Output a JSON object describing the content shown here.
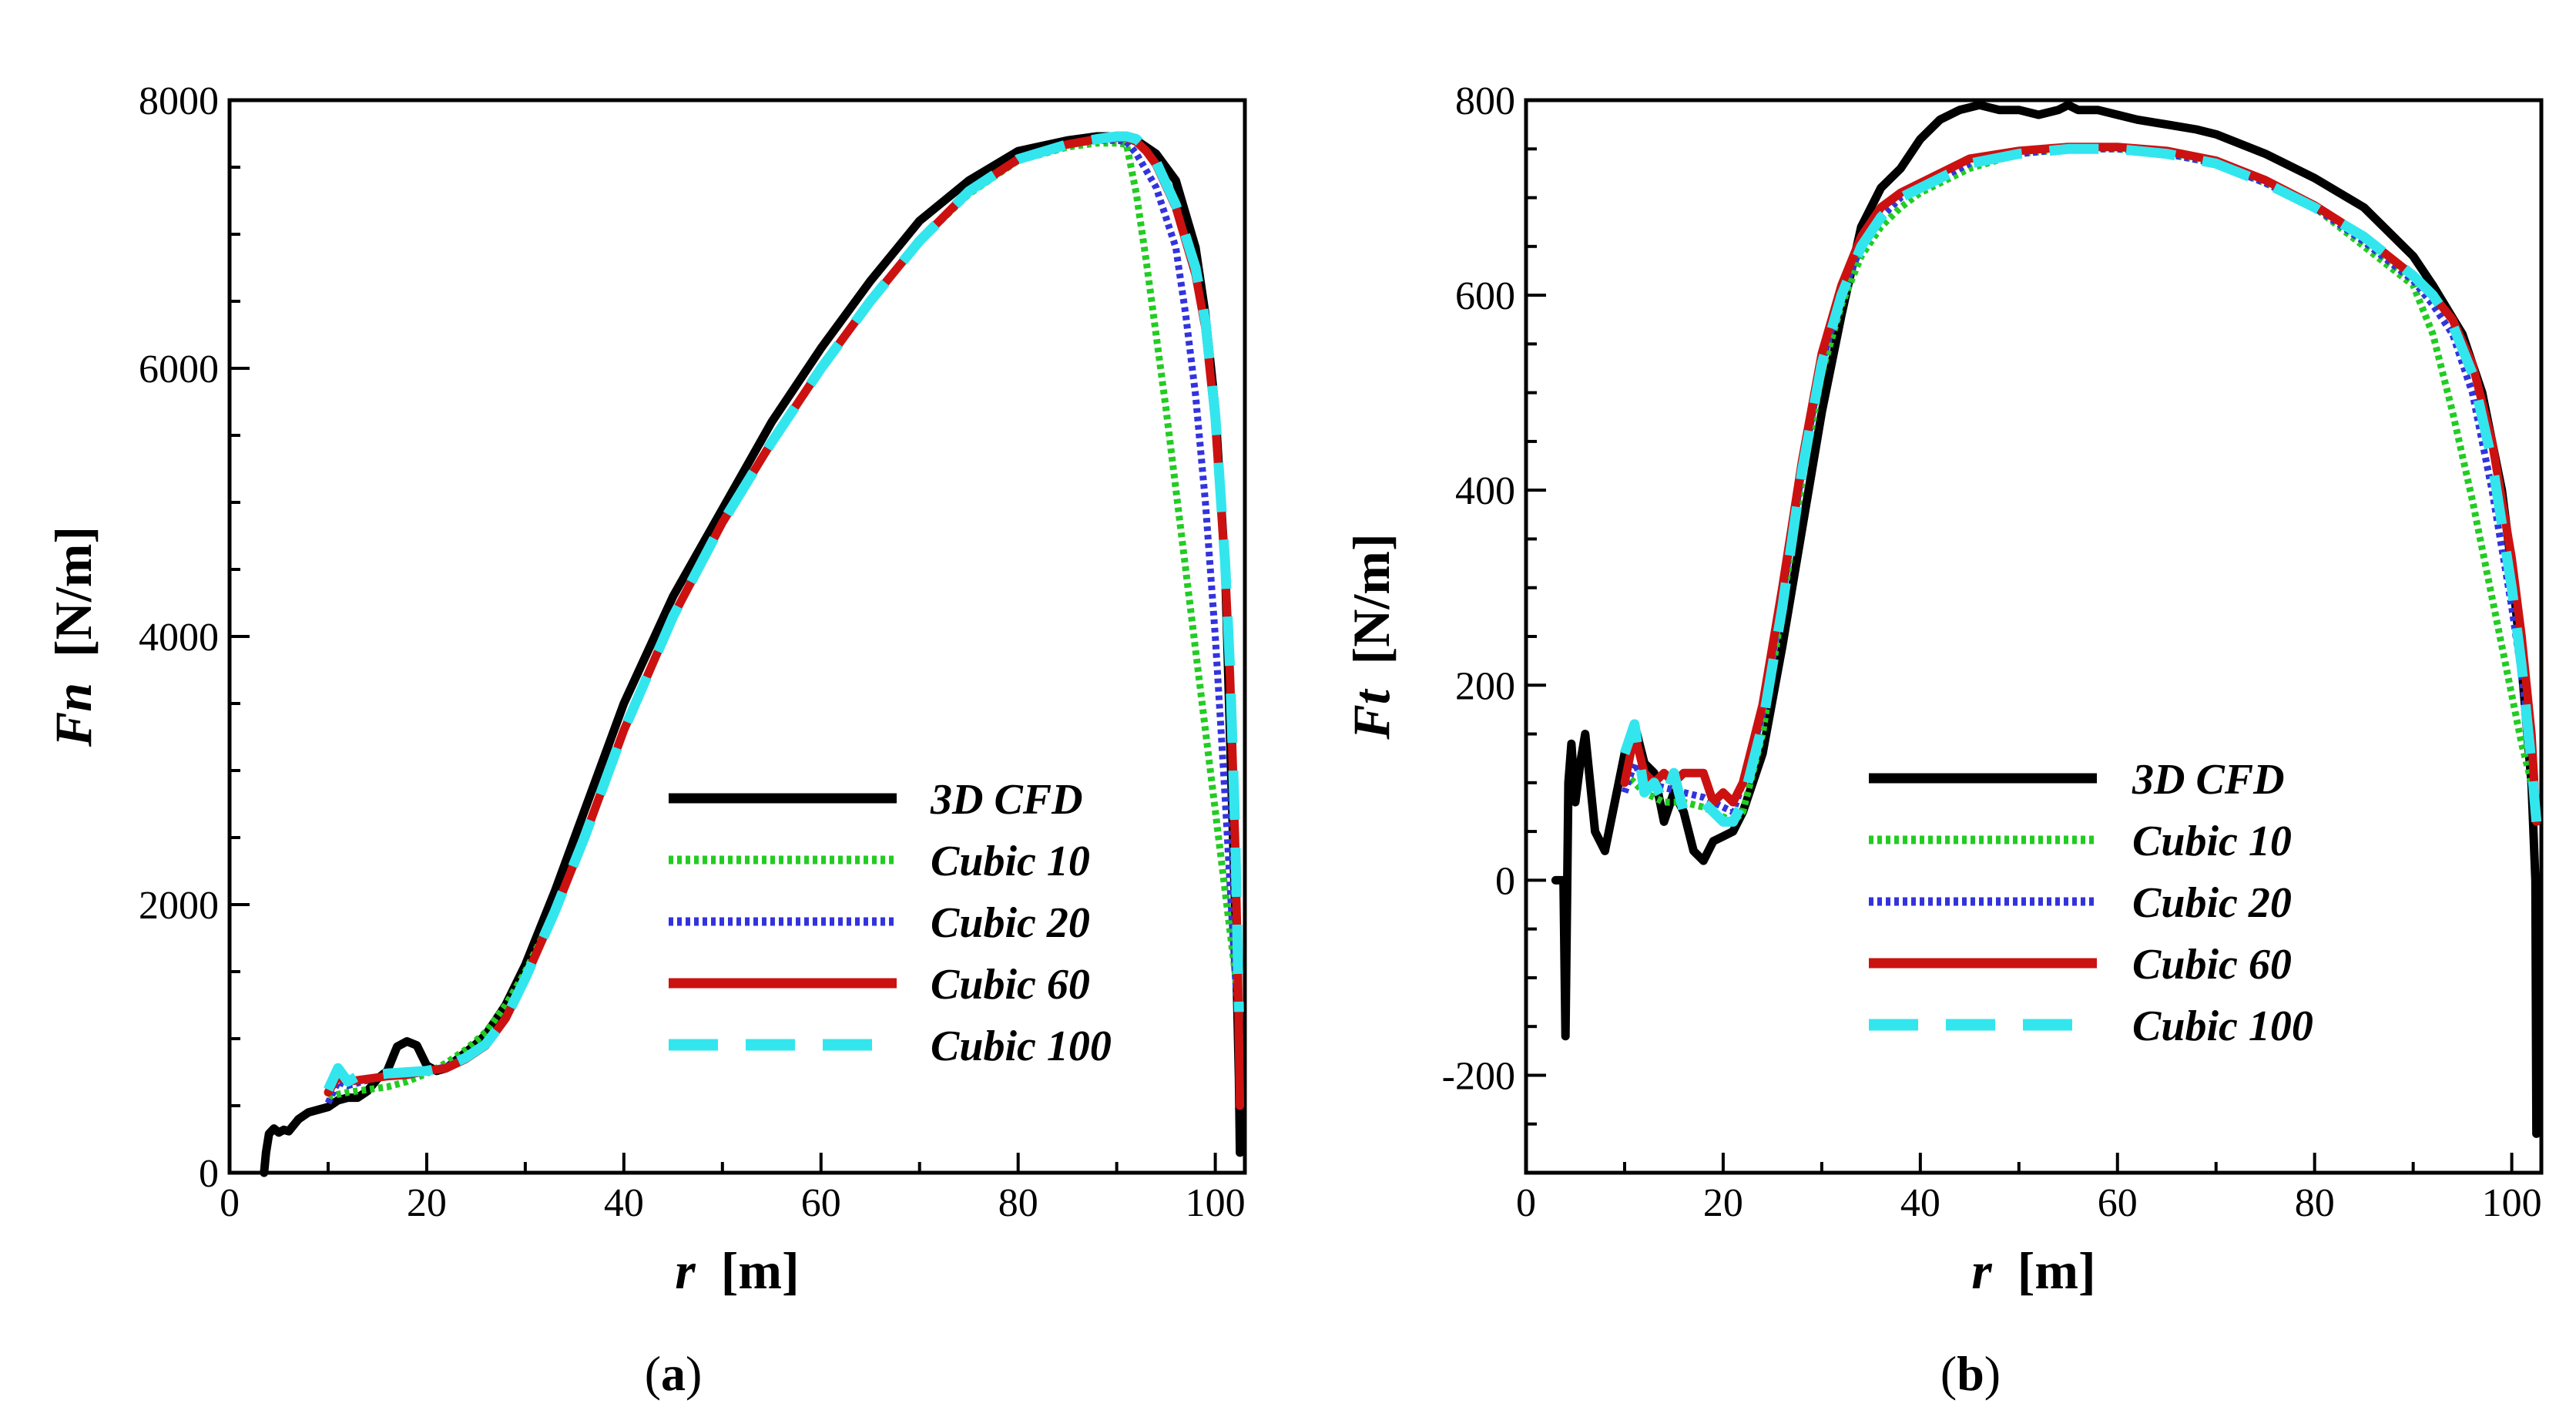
{
  "figure": {
    "panels": [
      {
        "label_prefix": "(",
        "label": "a",
        "label_suffix": ")"
      },
      {
        "label_prefix": "(",
        "label": "b",
        "label_suffix": ")"
      }
    ]
  },
  "chart_data": [
    {
      "type": "line",
      "xlabel_var": "r",
      "xlabel_unit": "[m]",
      "ylabel_var": "Fn",
      "ylabel_unit": "[N/m]",
      "xlim": [
        0,
        103
      ],
      "ylim": [
        0,
        8000
      ],
      "xticks": [
        0,
        20,
        40,
        60,
        80,
        100
      ],
      "xtick_labels": [
        "0",
        "20",
        "40",
        "60",
        "80",
        "100"
      ],
      "yticks": [
        0,
        2000,
        4000,
        6000,
        8000
      ],
      "ytick_labels": [
        "0",
        "2000",
        "4000",
        "6000",
        "8000"
      ],
      "legend_position": "lower-right",
      "grid": false,
      "series": [
        {
          "name": "3D CFD",
          "color": "#000000",
          "style": "solid",
          "x": [
            3.5,
            3.7,
            4,
            4.5,
            5,
            5.5,
            6,
            7,
            8,
            9,
            10,
            11,
            12,
            13,
            14,
            15,
            16,
            17,
            18,
            19,
            20,
            21,
            22,
            23,
            24,
            25,
            26,
            28,
            30,
            33,
            36,
            40,
            45,
            50,
            55,
            60,
            65,
            70,
            75,
            80,
            85,
            88,
            90,
            91,
            92,
            94,
            96,
            98,
            99,
            100,
            101,
            102,
            102.4,
            102.5
          ],
          "y": [
            0,
            150,
            290,
            330,
            300,
            320,
            310,
            400,
            450,
            470,
            490,
            540,
            560,
            560,
            610,
            700,
            760,
            940,
            980,
            950,
            800,
            760,
            780,
            840,
            900,
            960,
            1030,
            1250,
            1550,
            2100,
            2700,
            3500,
            4300,
            4950,
            5600,
            6150,
            6650,
            7100,
            7400,
            7620,
            7700,
            7730,
            7730,
            7720,
            7700,
            7600,
            7400,
            6900,
            6400,
            5700,
            4500,
            2000,
            700,
            150
          ]
        },
        {
          "name": "Cubic 10",
          "color": "#22cc22",
          "style": "dotted",
          "x": [
            10,
            12,
            14,
            16,
            18,
            20,
            22,
            24,
            26,
            28,
            30,
            33,
            36,
            40,
            45,
            50,
            55,
            60,
            65,
            70,
            75,
            80,
            85,
            88,
            90,
            91,
            92,
            93,
            95,
            97,
            99,
            101,
            102,
            102.5
          ],
          "y": [
            570,
            600,
            620,
            640,
            680,
            740,
            820,
            920,
            1050,
            1250,
            1500,
            1950,
            2500,
            3300,
            4150,
            4850,
            5450,
            6000,
            6500,
            6950,
            7300,
            7550,
            7650,
            7680,
            7680,
            7670,
            7300,
            6800,
            5700,
            4500,
            3300,
            2100,
            1500,
            1200
          ]
        },
        {
          "name": "Cubic 20",
          "color": "#3333dd",
          "style": "dotted",
          "x": [
            10,
            11,
            12,
            14,
            16,
            18,
            20,
            22,
            24,
            26,
            28,
            30,
            33,
            36,
            40,
            45,
            50,
            55,
            60,
            65,
            70,
            75,
            80,
            85,
            88,
            90,
            91,
            92,
            94,
            96,
            97,
            98,
            99,
            100,
            101,
            102,
            102.5
          ],
          "y": [
            520,
            680,
            650,
            690,
            730,
            740,
            760,
            790,
            860,
            950,
            1150,
            1450,
            1950,
            2500,
            3300,
            4150,
            4850,
            5450,
            6000,
            6500,
            6950,
            7320,
            7560,
            7670,
            7700,
            7700,
            7690,
            7600,
            7350,
            6900,
            6400,
            5800,
            5000,
            4000,
            2800,
            1500,
            1000
          ]
        },
        {
          "name": "Cubic 60",
          "color": "#cc1111",
          "style": "solid",
          "x": [
            10,
            11,
            12,
            14,
            16,
            18,
            20,
            22,
            24,
            26,
            28,
            30,
            33,
            36,
            40,
            45,
            50,
            55,
            60,
            65,
            70,
            75,
            80,
            85,
            88,
            90,
            91,
            92,
            93,
            94,
            96,
            98,
            99,
            100,
            101,
            101.5,
            102,
            102.3,
            102.5
          ],
          "y": [
            600,
            720,
            680,
            700,
            720,
            730,
            760,
            780,
            850,
            950,
            1150,
            1450,
            1950,
            2500,
            3300,
            4150,
            4850,
            5450,
            6000,
            6500,
            6950,
            7320,
            7560,
            7670,
            7710,
            7720,
            7720,
            7690,
            7620,
            7520,
            7200,
            6700,
            6300,
            5600,
            4500,
            3700,
            2500,
            1500,
            500
          ]
        },
        {
          "name": "Cubic 100",
          "color": "#33e6ee",
          "style": "dashed",
          "x": [
            10,
            11,
            12,
            13,
            14,
            16,
            18,
            20,
            22,
            24,
            26,
            28,
            30,
            33,
            36,
            40,
            45,
            50,
            55,
            60,
            65,
            70,
            75,
            80,
            85,
            88,
            90,
            91,
            92,
            93,
            94,
            96,
            98,
            99,
            100,
            101,
            101.5,
            102,
            102.4
          ],
          "y": [
            620,
            780,
            680,
            720,
            720,
            740,
            750,
            760,
            790,
            860,
            960,
            1150,
            1450,
            1950,
            2500,
            3300,
            4150,
            4850,
            5450,
            6000,
            6500,
            6950,
            7320,
            7560,
            7670,
            7710,
            7730,
            7730,
            7710,
            7640,
            7540,
            7220,
            6750,
            6350,
            5650,
            4550,
            3750,
            2600,
            1200
          ]
        }
      ]
    },
    {
      "type": "line",
      "xlabel_var": "r",
      "xlabel_unit": "[m]",
      "ylabel_var": "Ft",
      "ylabel_unit": "[N/m]",
      "xlim": [
        0,
        103
      ],
      "ylim": [
        -300,
        800
      ],
      "xticks": [
        0,
        20,
        40,
        60,
        80,
        100
      ],
      "xtick_labels": [
        "0",
        "20",
        "40",
        "60",
        "80",
        "100"
      ],
      "yticks": [
        -200,
        0,
        200,
        400,
        600,
        800
      ],
      "ytick_labels": [
        "-200",
        "0",
        "200",
        "400",
        "600",
        "800"
      ],
      "legend_position": "lower-right",
      "grid": false,
      "series": [
        {
          "name": "3D CFD",
          "color": "#000000",
          "style": "solid",
          "x": [
            3,
            3.8,
            4,
            4.3,
            4.6,
            5,
            5.5,
            6,
            7,
            8,
            9,
            10,
            11,
            12,
            13,
            14,
            15,
            16,
            17,
            18,
            19,
            20,
            21,
            22,
            24,
            26,
            28,
            30,
            32,
            34,
            36,
            38,
            40,
            42,
            44,
            46,
            48,
            50,
            52,
            54,
            55,
            56,
            58,
            60,
            62,
            65,
            68,
            70,
            75,
            80,
            85,
            90,
            92,
            95,
            97,
            99,
            100,
            101,
            102,
            102.4,
            102.5
          ],
          "y": [
            0,
            0,
            -160,
            100,
            140,
            80,
            120,
            150,
            50,
            30,
            80,
            130,
            160,
            120,
            110,
            60,
            90,
            70,
            30,
            20,
            40,
            45,
            50,
            70,
            130,
            240,
            360,
            480,
            580,
            670,
            710,
            730,
            760,
            780,
            790,
            795,
            790,
            790,
            785,
            790,
            795,
            790,
            790,
            785,
            780,
            775,
            770,
            765,
            745,
            720,
            690,
            640,
            610,
            560,
            500,
            400,
            320,
            220,
            100,
            0,
            -260
          ]
        },
        {
          "name": "Cubic 10",
          "color": "#22cc22",
          "style": "dotted",
          "x": [
            10,
            12,
            14,
            16,
            18,
            20,
            21,
            22,
            24,
            26,
            28,
            30,
            32,
            34,
            36,
            38,
            40,
            45,
            50,
            55,
            60,
            65,
            70,
            75,
            80,
            85,
            90,
            92,
            94,
            96,
            98,
            100,
            101,
            102,
            102.5
          ],
          "y": [
            110,
            90,
            80,
            80,
            75,
            65,
            60,
            70,
            150,
            280,
            410,
            520,
            590,
            640,
            670,
            690,
            705,
            730,
            745,
            750,
            750,
            745,
            735,
            715,
            690,
            650,
            610,
            560,
            480,
            390,
            290,
            190,
            140,
            100,
            80
          ]
        },
        {
          "name": "Cubic 20",
          "color": "#3333dd",
          "style": "dotted",
          "x": [
            10,
            11,
            12,
            14,
            16,
            18,
            20,
            21,
            22,
            24,
            26,
            28,
            30,
            32,
            34,
            36,
            38,
            40,
            45,
            50,
            55,
            60,
            65,
            70,
            75,
            80,
            85,
            90,
            92,
            94,
            96,
            98,
            100,
            101,
            102,
            102.5
          ],
          "y": [
            90,
            120,
            100,
            95,
            90,
            85,
            75,
            70,
            100,
            170,
            290,
            420,
            530,
            600,
            650,
            680,
            700,
            710,
            735,
            745,
            750,
            750,
            745,
            735,
            715,
            690,
            655,
            615,
            590,
            560,
            500,
            400,
            280,
            210,
            130,
            80
          ]
        },
        {
          "name": "Cubic 60",
          "color": "#cc1111",
          "style": "solid",
          "x": [
            10,
            11,
            12,
            13,
            14,
            15,
            16,
            17,
            18,
            19,
            20,
            21,
            22,
            24,
            26,
            28,
            30,
            32,
            34,
            36,
            38,
            40,
            45,
            50,
            55,
            60,
            65,
            70,
            75,
            80,
            85,
            90,
            92,
            94,
            96,
            98,
            100,
            101,
            102,
            102.5
          ],
          "y": [
            100,
            150,
            110,
            100,
            110,
            100,
            110,
            110,
            110,
            80,
            90,
            80,
            100,
            180,
            300,
            430,
            540,
            610,
            660,
            690,
            705,
            715,
            740,
            748,
            752,
            752,
            748,
            738,
            718,
            692,
            660,
            620,
            600,
            575,
            530,
            450,
            330,
            250,
            150,
            60
          ]
        },
        {
          "name": "Cubic 100",
          "color": "#33e6ee",
          "style": "dashed",
          "x": [
            10,
            11,
            12,
            13,
            14,
            15,
            16,
            18,
            20,
            21,
            22,
            24,
            26,
            28,
            30,
            32,
            34,
            36,
            38,
            40,
            45,
            50,
            55,
            60,
            65,
            70,
            75,
            80,
            85,
            90,
            92,
            94,
            96,
            98,
            100,
            101,
            102,
            102.5
          ],
          "y": [
            130,
            160,
            90,
            100,
            80,
            110,
            70,
            80,
            60,
            60,
            80,
            160,
            280,
            420,
            530,
            600,
            650,
            680,
            700,
            710,
            735,
            745,
            750,
            750,
            745,
            735,
            715,
            690,
            660,
            620,
            600,
            570,
            520,
            430,
            300,
            220,
            120,
            60
          ]
        }
      ]
    }
  ]
}
